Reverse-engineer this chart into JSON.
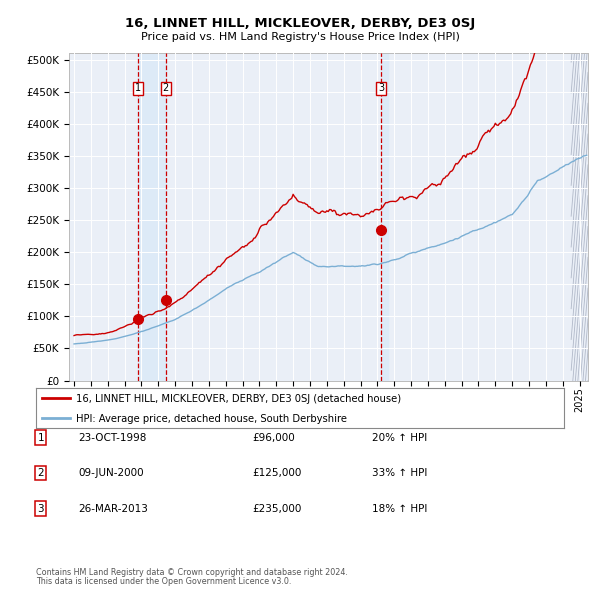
{
  "title": "16, LINNET HILL, MICKLEOVER, DERBY, DE3 0SJ",
  "subtitle": "Price paid vs. HM Land Registry's House Price Index (HPI)",
  "legend_line1": "16, LINNET HILL, MICKLEOVER, DERBY, DE3 0SJ (detached house)",
  "legend_line2": "HPI: Average price, detached house, South Derbyshire",
  "sale1_date": "23-OCT-1998",
  "sale1_price": 96000,
  "sale1_hpi": "20% ↑ HPI",
  "sale1_year": 1998.8,
  "sale2_date": "09-JUN-2000",
  "sale2_price": 125000,
  "sale2_hpi": "33% ↑ HPI",
  "sale2_year": 2000.44,
  "sale3_date": "26-MAR-2013",
  "sale3_price": 235000,
  "sale3_hpi": "18% ↑ HPI",
  "sale3_year": 2013.23,
  "hpi_color": "#7bafd4",
  "price_color": "#cc0000",
  "dot_color": "#cc0000",
  "vline_color": "#cc0000",
  "shade_color": "#ddeaf7",
  "ylim": [
    0,
    510000
  ],
  "yticks": [
    0,
    50000,
    100000,
    150000,
    200000,
    250000,
    300000,
    350000,
    400000,
    450000,
    500000
  ],
  "xlim_start": 1994.7,
  "xlim_end": 2025.5,
  "footer_line1": "Contains HM Land Registry data © Crown copyright and database right 2024.",
  "footer_line2": "This data is licensed under the Open Government Licence v3.0.",
  "plot_bg_color": "#eaeff7"
}
